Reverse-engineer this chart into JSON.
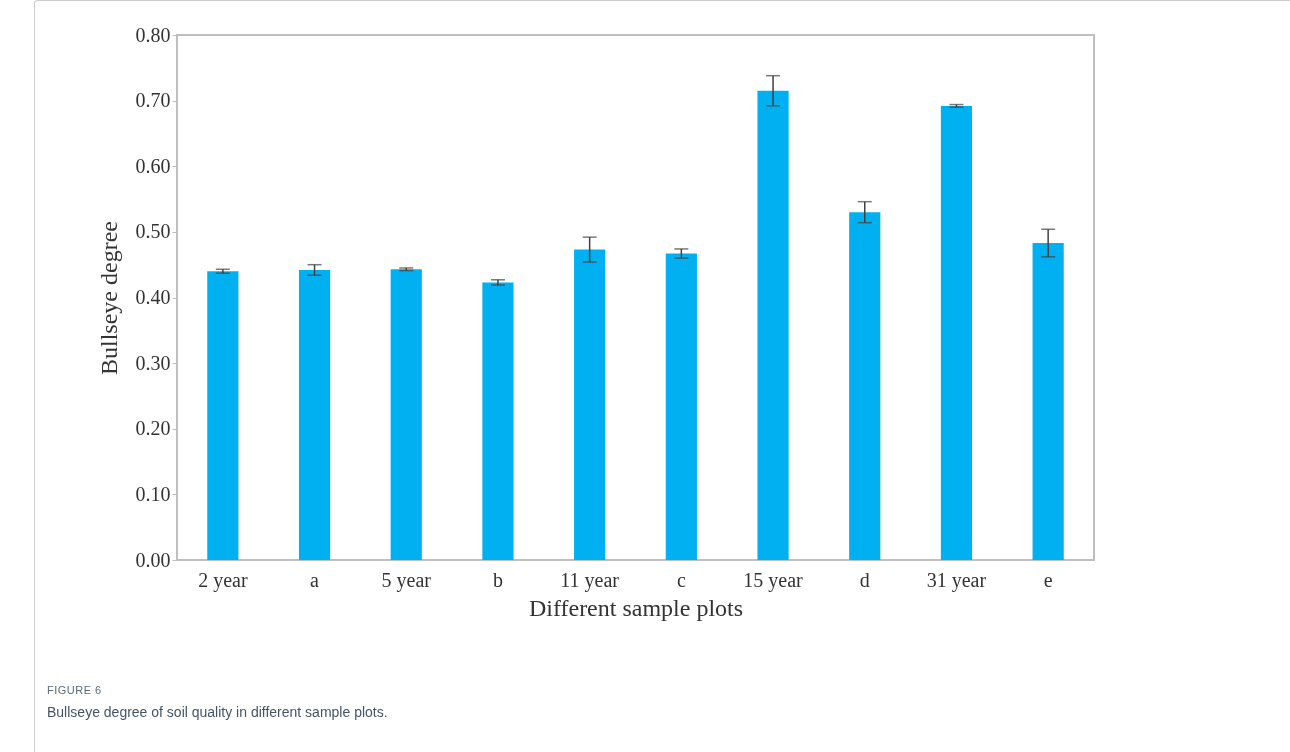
{
  "chart_data": {
    "type": "bar",
    "xlabel": "Different sample plots",
    "ylabel": "Bullseye degree",
    "categories": [
      "2 year",
      "a",
      "5 year",
      "b",
      "11 year",
      "c",
      "15 year",
      "d",
      "31 year",
      "e"
    ],
    "values": [
      0.44,
      0.442,
      0.443,
      0.423,
      0.473,
      0.467,
      0.715,
      0.53,
      0.692,
      0.483
    ],
    "errors": [
      0.003,
      0.008,
      0.002,
      0.004,
      0.019,
      0.007,
      0.023,
      0.016,
      0.002,
      0.021
    ],
    "color": "#00b0f0",
    "ylim": [
      0,
      0.8
    ],
    "yticks": [
      {
        "value": 0,
        "label": "0.00"
      },
      {
        "value": 0.1,
        "label": "0.10"
      },
      {
        "value": 0.2,
        "label": "0.20"
      },
      {
        "value": 0.3,
        "label": "0.30"
      },
      {
        "value": 0.4,
        "label": "0.40"
      },
      {
        "value": 0.5,
        "label": "0.50"
      },
      {
        "value": 0.6,
        "label": "0.60"
      },
      {
        "value": 0.7,
        "label": "0.70"
      },
      {
        "value": 0.8,
        "label": "0.80"
      }
    ],
    "grid": false,
    "annotations": [
      "FIGURE 6",
      "Bullseye degree of soil quality in different sample plots."
    ]
  }
}
